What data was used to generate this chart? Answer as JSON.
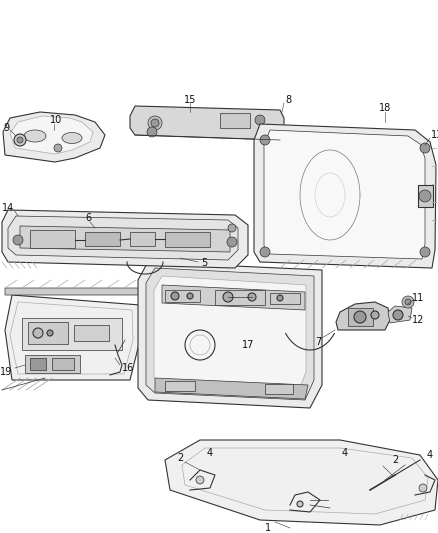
{
  "background_color": "#ffffff",
  "fig_width": 4.38,
  "fig_height": 5.33,
  "dpi": 100,
  "label_fontsize": 7,
  "label_color": "#111111",
  "line_color": "#333333",
  "light_gray": "#aaaaaa",
  "mid_gray": "#888888",
  "dark_gray": "#444444",
  "fill_light": "#e8e8e8",
  "fill_mid": "#cccccc",
  "fill_dark": "#999999"
}
